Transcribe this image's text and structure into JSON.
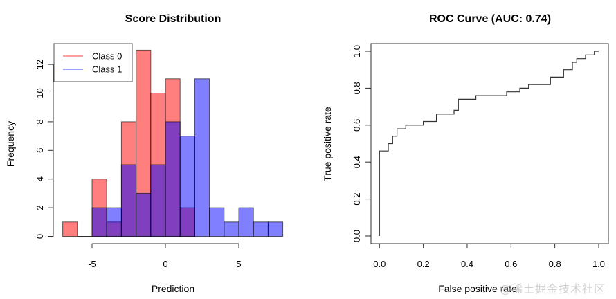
{
  "watermark": "@稀土掘金技术社区",
  "chart_data": [
    {
      "type": "bar",
      "subtype": "overlaid-histogram",
      "title": "Score Distribution",
      "xlabel": "Prediction",
      "ylabel": "Frequency",
      "bin_edges": [
        -7,
        -6,
        -5,
        -4,
        -3,
        -2,
        -1,
        0,
        1,
        2,
        3,
        4,
        5,
        6,
        7,
        8
      ],
      "xlim": [
        -7,
        8
      ],
      "ylim": [
        0,
        13
      ],
      "x_ticks": [
        -5,
        0,
        5
      ],
      "y_ticks": [
        0,
        2,
        4,
        6,
        8,
        10,
        12
      ],
      "series": [
        {
          "name": "Class 0",
          "color": "#FF0000",
          "alpha": 0.5,
          "values": [
            1,
            0,
            4,
            1,
            8,
            13,
            10,
            11,
            2,
            0,
            0,
            0,
            0,
            0,
            0
          ]
        },
        {
          "name": "Class 1",
          "color": "#0000FF",
          "alpha": 0.5,
          "values": [
            0,
            0,
            2,
            2,
            5,
            3,
            5,
            8,
            7,
            11,
            2,
            1,
            2,
            1,
            1
          ]
        }
      ],
      "legend": {
        "position": "top-left",
        "entries": [
          "Class 0",
          "Class 1"
        ]
      },
      "grid": false
    },
    {
      "type": "line",
      "subtype": "step",
      "title": "ROC Curve (AUC: 0.74)",
      "xlabel": "False positive rate",
      "ylabel": "True positive rate",
      "xlim": [
        0,
        1
      ],
      "ylim": [
        0,
        1
      ],
      "x_ticks": [
        "0.0",
        "0.2",
        "0.4",
        "0.6",
        "0.8",
        "1.0"
      ],
      "y_ticks": [
        "0.0",
        "0.2",
        "0.4",
        "0.6",
        "0.8",
        "1.0"
      ],
      "auc": 0.74,
      "series": [
        {
          "name": "ROC",
          "color": "#000000",
          "points": [
            [
              0.0,
              0.0
            ],
            [
              0.0,
              0.46
            ],
            [
              0.04,
              0.46
            ],
            [
              0.04,
              0.5
            ],
            [
              0.06,
              0.5
            ],
            [
              0.06,
              0.54
            ],
            [
              0.08,
              0.54
            ],
            [
              0.08,
              0.58
            ],
            [
              0.12,
              0.58
            ],
            [
              0.12,
              0.6
            ],
            [
              0.2,
              0.6
            ],
            [
              0.2,
              0.62
            ],
            [
              0.26,
              0.62
            ],
            [
              0.26,
              0.66
            ],
            [
              0.34,
              0.66
            ],
            [
              0.34,
              0.68
            ],
            [
              0.36,
              0.68
            ],
            [
              0.36,
              0.74
            ],
            [
              0.44,
              0.74
            ],
            [
              0.44,
              0.76
            ],
            [
              0.58,
              0.76
            ],
            [
              0.58,
              0.78
            ],
            [
              0.64,
              0.78
            ],
            [
              0.64,
              0.8
            ],
            [
              0.68,
              0.8
            ],
            [
              0.68,
              0.82
            ],
            [
              0.78,
              0.82
            ],
            [
              0.78,
              0.86
            ],
            [
              0.84,
              0.86
            ],
            [
              0.84,
              0.9
            ],
            [
              0.88,
              0.9
            ],
            [
              0.88,
              0.94
            ],
            [
              0.9,
              0.94
            ],
            [
              0.9,
              0.96
            ],
            [
              0.94,
              0.96
            ],
            [
              0.94,
              0.98
            ],
            [
              0.98,
              0.98
            ],
            [
              0.98,
              1.0
            ],
            [
              1.0,
              1.0
            ]
          ]
        }
      ],
      "grid": false
    }
  ]
}
